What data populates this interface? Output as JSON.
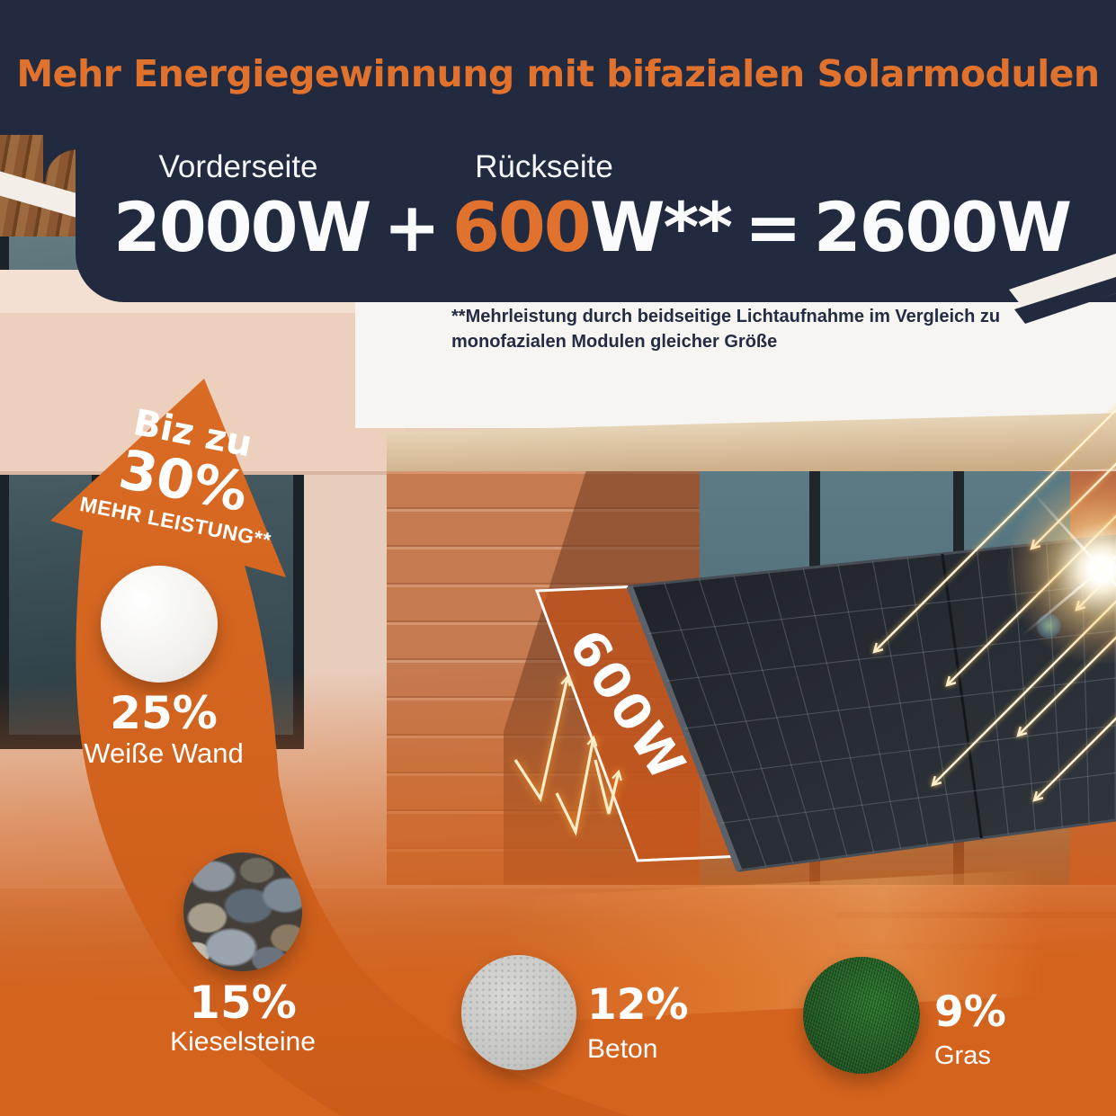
{
  "colors": {
    "navy": "#222a40",
    "accent_orange": "#e0722d",
    "arrow_orange": "#d4631e"
  },
  "header": {
    "title": "Mehr Energiegewinnung mit bifazialen Solarmodulen",
    "front_label": "Vorderseite",
    "back_label": "Rückseite",
    "formula": {
      "front_value": "2000W",
      "plus": "+",
      "back_value": "600",
      "back_unit": "W**",
      "equals": "=",
      "total_value": "2600W"
    }
  },
  "footnote": {
    "line1": "**Mehrleistung durch beidseitige Lichtaufnahme im Vergleich zu",
    "line2": "monofazialen Modulen gleicher Größe"
  },
  "gain_badge": {
    "prefix": "Biz zu",
    "value": "30%",
    "suffix": "MEHR LEISTUNG**"
  },
  "rear_panel_label": "600W",
  "surfaces": [
    {
      "value": "25%",
      "label": "Weiße Wand",
      "texture": "white-wall"
    },
    {
      "value": "15%",
      "label": "Kieselsteine",
      "texture": "pebbles"
    },
    {
      "value": "12%",
      "label": "Beton",
      "texture": "concrete"
    },
    {
      "value": "9%",
      "label": "Gras",
      "texture": "grass"
    }
  ]
}
